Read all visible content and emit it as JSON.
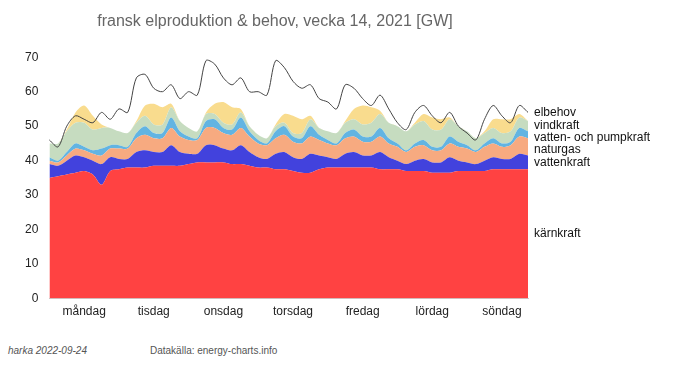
{
  "chart_data": {
    "type": "area",
    "title": "fransk elproduktion & behov, vecka 14, 2021 [GW]",
    "categories": [
      null,
      null,
      null,
      null,
      "måndag",
      null,
      null,
      null,
      null,
      null,
      null,
      null,
      "tisdag",
      null,
      null,
      null,
      null,
      null,
      null,
      null,
      "onsdag",
      null,
      null,
      null,
      null,
      null,
      null,
      null,
      "torsdag",
      null,
      null,
      null,
      null,
      null,
      null,
      null,
      "fredag",
      null,
      null,
      null,
      null,
      null,
      null,
      null,
      "lördag",
      null,
      null,
      null,
      null,
      null,
      null,
      null,
      "söndag",
      null,
      null,
      null
    ],
    "stacked": true,
    "grid": false,
    "ylim": [
      0,
      70
    ],
    "yticks": [
      0,
      10,
      20,
      30,
      40,
      50,
      60,
      70
    ],
    "annotations": [
      "harka 2022-09-24",
      "Datakälla: energy-charts.info"
    ],
    "series": [
      {
        "name": "kärnkraft",
        "type": "area",
        "color": "#ff4242",
        "values": [
          35,
          35.5,
          36,
          36.5,
          37,
          36,
          33,
          37,
          37.5,
          38,
          38,
          38,
          38.5,
          38.5,
          38.5,
          38.5,
          39,
          39.5,
          39.5,
          39.5,
          39.5,
          39,
          39,
          38.5,
          38,
          38,
          37.5,
          37.5,
          37,
          36.5,
          36.5,
          37.5,
          38,
          38,
          38,
          38,
          38,
          38,
          37.5,
          37.5,
          37.5,
          37,
          37,
          37,
          36.5,
          36.5,
          36.5,
          37,
          37,
          37,
          37,
          37.5,
          37.5,
          37.5,
          37.5,
          37.5
        ]
      },
      {
        "name": "vattenkraft",
        "type": "area",
        "color": "#4242dd",
        "values": [
          4,
          3,
          4,
          5,
          4,
          4,
          6,
          4,
          3,
          2.5,
          4.5,
          5,
          4,
          4,
          6,
          4,
          3,
          2.5,
          5,
          5,
          4,
          4,
          5.5,
          4,
          3,
          2.5,
          4.5,
          5,
          4,
          4,
          5.5,
          4,
          3,
          2.5,
          4,
          4.5,
          3.5,
          3.5,
          5,
          3.5,
          2.5,
          2,
          3,
          3.5,
          3,
          3,
          4.5,
          3,
          2.5,
          2,
          3,
          3.5,
          3,
          3,
          4.5,
          4
        ]
      },
      {
        "name": "naturgas",
        "type": "area",
        "color": "#f7aa80",
        "values": [
          1,
          1,
          1.5,
          2,
          2,
          2,
          2.5,
          2.5,
          3,
          3,
          4,
          4.5,
          4,
          4,
          5,
          4.5,
          4,
          4,
          5,
          5,
          4.5,
          4.5,
          5,
          4.5,
          4,
          4,
          4.5,
          5,
          4.5,
          4.5,
          5,
          4.5,
          4,
          4,
          4.5,
          4.5,
          4,
          4,
          4.5,
          4,
          4,
          3.5,
          4,
          4,
          3.5,
          3.5,
          4,
          4,
          4,
          3.5,
          4,
          4,
          3.5,
          4,
          5,
          5
        ]
      },
      {
        "name": "vatten- och pumpkraft",
        "type": "area",
        "color": "#62b4e2",
        "values": [
          1,
          0.5,
          1,
          1.5,
          1,
          1,
          2,
          1,
          1,
          0.5,
          1.5,
          2.5,
          1.5,
          1.5,
          3,
          1.5,
          1,
          0.5,
          2,
          2.5,
          1.5,
          1.5,
          3,
          1.5,
          1,
          0.5,
          2,
          2.5,
          1.5,
          1.5,
          3,
          1.5,
          1,
          0.5,
          1.5,
          2,
          1.5,
          1.5,
          2.5,
          1.5,
          1,
          0.5,
          1,
          1.5,
          1,
          1,
          2,
          1.5,
          1,
          0.5,
          1,
          1.5,
          1,
          1,
          2.5,
          2
        ]
      },
      {
        "name": "vindkraft",
        "type": "area",
        "color": "#c6dcc0",
        "values": [
          4,
          5,
          6,
          6,
          7,
          6,
          6,
          5,
          4,
          4,
          3,
          3,
          2.5,
          2.5,
          3,
          3,
          2.5,
          2,
          2,
          1.5,
          1.5,
          1.5,
          1.5,
          1.5,
          1.5,
          1.5,
          1.5,
          1,
          1,
          1.5,
          2,
          2,
          2.5,
          3,
          3,
          3,
          3.5,
          4,
          4,
          4.5,
          5,
          5.5,
          5.5,
          5.5,
          5,
          5,
          5,
          4.5,
          4,
          3.5,
          3,
          3,
          3,
          3,
          3,
          3
        ]
      },
      {
        "name": null,
        "type": "area",
        "color": "#f9dc8e",
        "values": [
          0,
          0,
          0.5,
          3,
          5,
          4,
          1,
          0,
          0,
          0,
          0.5,
          3,
          6,
          5,
          1,
          0,
          0,
          0,
          0.5,
          3,
          6,
          5,
          1,
          0,
          0,
          0,
          0.5,
          2.5,
          5,
          4,
          1,
          0,
          0,
          0,
          0.5,
          3,
          5.5,
          4.5,
          1,
          0,
          0,
          0,
          0.5,
          2,
          3.5,
          3,
          0.5,
          0,
          0,
          0,
          0.5,
          2.5,
          4,
          3.5,
          1,
          0
        ]
      },
      {
        "name": "elbehov",
        "type": "line",
        "color": "#444444",
        "values": [
          46,
          44,
          50,
          53,
          52,
          51,
          54,
          52,
          55,
          54,
          64,
          65,
          61,
          60,
          62,
          58,
          60,
          59,
          69,
          68,
          64,
          62,
          64,
          60,
          60,
          59,
          69,
          67,
          63,
          61,
          62,
          58,
          57,
          55,
          62,
          61,
          58,
          56,
          59,
          55,
          51,
          49,
          54,
          56,
          53,
          51,
          54,
          50,
          48,
          46,
          52,
          56,
          53,
          51,
          56,
          54
        ]
      }
    ]
  }
}
